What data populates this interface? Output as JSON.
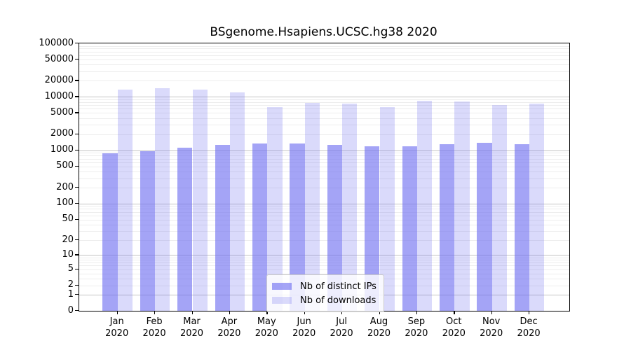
{
  "title": "BSgenome.Hsapiens.UCSC.hg38 2020",
  "chart_data": {
    "type": "bar",
    "title": "BSgenome.Hsapiens.UCSC.hg38 2020",
    "scale": "log1p",
    "grid": true,
    "legend_position": "bottom-center",
    "xlabel": "",
    "ylabel": "",
    "ylim": [
      0,
      100000
    ],
    "year_label": "2020",
    "categories": [
      "Jan",
      "Feb",
      "Mar",
      "Apr",
      "May",
      "Jun",
      "Jul",
      "Aug",
      "Sep",
      "Oct",
      "Nov",
      "Dec"
    ],
    "y_ticks": [
      0,
      1,
      2,
      5,
      10,
      20,
      50,
      100,
      200,
      500,
      1000,
      2000,
      5000,
      10000,
      20000,
      50000,
      100000
    ],
    "series": [
      {
        "name": "Nb of distinct IPs",
        "base_hex": "#6c6cf0",
        "alpha": 0.62,
        "values": [
          890,
          975,
          1130,
          1250,
          1340,
          1350,
          1270,
          1190,
          1190,
          1310,
          1380,
          1310
        ]
      },
      {
        "name": "Nb of downloads",
        "base_hex": "#6c6cf0",
        "alpha": 0.25,
        "values": [
          13600,
          14400,
          13900,
          12200,
          6500,
          7650,
          7450,
          6530,
          8550,
          8300,
          7080,
          7450
        ]
      }
    ],
    "colors": {
      "major_grid": "#c3c3c3",
      "minor_grid": "#ededed",
      "spine": "#000000",
      "legend_border": "#cccccc"
    }
  }
}
